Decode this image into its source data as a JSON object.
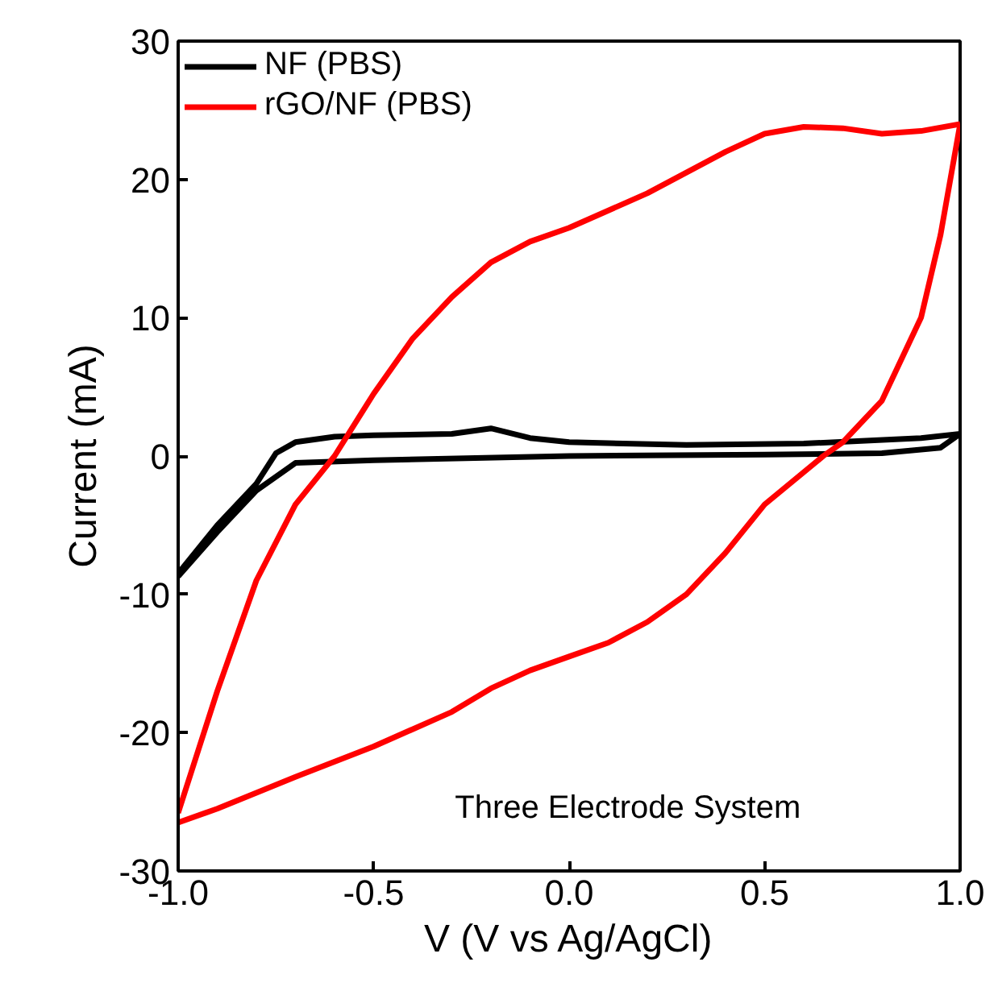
{
  "chart_data": {
    "type": "line",
    "xlabel": "V (V vs Ag/AgCl)",
    "ylabel": "Current (mA)",
    "xlim": [
      -1.0,
      1.0
    ],
    "ylim": [
      -30,
      30
    ],
    "xticks": [
      {
        "value": -1.0,
        "label": "-1.0"
      },
      {
        "value": -0.5,
        "label": "-0.5"
      },
      {
        "value": 0.0,
        "label": "0.0"
      },
      {
        "value": 0.5,
        "label": "0.5"
      },
      {
        "value": 1.0,
        "label": "1.0"
      }
    ],
    "yticks": [
      -30,
      -20,
      -10,
      0,
      10,
      20,
      30
    ],
    "grid": false,
    "legend": "top left",
    "marker": "none",
    "line_style": "solid",
    "annotations": [
      "Three Electrode System"
    ],
    "series": [
      {
        "name": "NF (PBS)",
        "color": "#000000",
        "x": [
          -1.0,
          -0.9,
          -0.8,
          -0.75,
          -0.7,
          -0.6,
          -0.5,
          -0.3,
          -0.2,
          -0.1,
          0.0,
          0.3,
          0.6,
          0.9,
          1.0,
          0.95,
          0.8,
          0.5,
          0.0,
          -0.5,
          -0.7,
          -0.8,
          -0.9,
          -1.0
        ],
        "values": [
          -8.5,
          -5,
          -2,
          0.2,
          1,
          1.4,
          1.5,
          1.6,
          2.0,
          1.3,
          1.0,
          0.8,
          0.9,
          1.3,
          1.6,
          0.6,
          0.2,
          0.1,
          0,
          -0.3,
          -0.5,
          -2.5,
          -5.5,
          -8.7
        ]
      },
      {
        "name": "rGO/NF (PBS)",
        "color": "#ff0000",
        "x": [
          -1.0,
          -0.9,
          -0.8,
          -0.7,
          -0.6,
          -0.5,
          -0.4,
          -0.3,
          -0.2,
          -0.1,
          0.0,
          0.2,
          0.4,
          0.5,
          0.6,
          0.7,
          0.8,
          0.9,
          1.0
        ],
        "values": [
          -25.8,
          -17,
          -9,
          -3.5,
          0,
          4.5,
          8.5,
          11.5,
          14,
          15.5,
          16.5,
          19,
          22,
          23.3,
          23.8,
          23.7,
          23.3,
          23.5,
          24
        ]
      },
      {
        "color": "#ff0000",
        "x": [
          1.0,
          0.95,
          0.9,
          0.8,
          0.7,
          0.65,
          0.5,
          0.4,
          0.3,
          0.2,
          0.1,
          0.0,
          -0.1,
          -0.2,
          -0.3,
          -0.5,
          -0.7,
          -0.9,
          -1.0
        ],
        "values": [
          24,
          16,
          10,
          4,
          1,
          0,
          -3.5,
          -7,
          -10,
          -12,
          -13.5,
          -14.5,
          -15.5,
          -16.8,
          -18.5,
          -21,
          -23.2,
          -25.5,
          -26.5
        ]
      }
    ]
  }
}
